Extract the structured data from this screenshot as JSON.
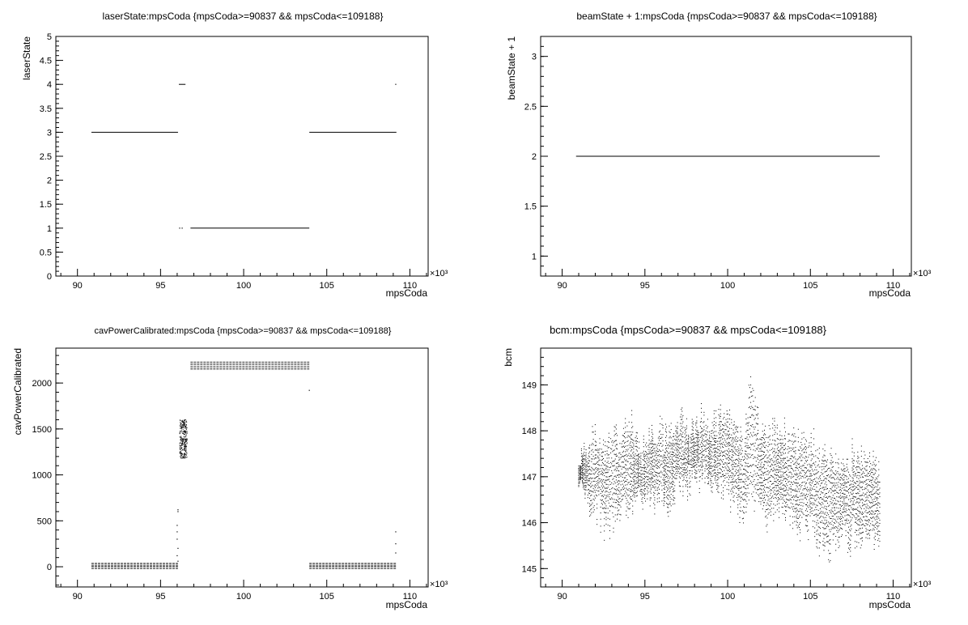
{
  "chart_data": [
    {
      "type": "scatter",
      "title": "laserState:mpsCoda {mpsCoda>=90837 && mpsCoda<=109188}",
      "xlabel": "mpsCoda",
      "ylabel": "laserState",
      "x_multiplier": "×10³",
      "xlim": [
        88.7,
        111.1
      ],
      "ylim": [
        0,
        5
      ],
      "x_ticks": [
        "90",
        "95",
        "100",
        "105",
        "110"
      ],
      "y_ticks": [
        "0",
        "0.5",
        "1",
        "1.5",
        "2",
        "2.5",
        "3",
        "3.5",
        "4",
        "4.5",
        "5"
      ],
      "grid": false,
      "series": [
        {
          "segments": [
            {
              "x": [
                90.84,
                96.05
              ],
              "y": 3
            },
            {
              "x": [
                96.1,
                96.5
              ],
              "y": 4
            },
            {
              "x": [
                96.8,
                103.95
              ],
              "y": 1
            },
            {
              "x": [
                103.95,
                109.19
              ],
              "y": 3
            }
          ],
          "points": [
            [
              96.15,
              1
            ],
            [
              96.3,
              1
            ],
            [
              109.15,
              4
            ]
          ]
        }
      ]
    },
    {
      "type": "scatter",
      "title": "beamState + 1:mpsCoda {mpsCoda>=90837 && mpsCoda<=109188}",
      "xlabel": "mpsCoda",
      "ylabel": "beamState + 1",
      "x_multiplier": "×10³",
      "xlim": [
        88.7,
        111.1
      ],
      "ylim": [
        0.8,
        3.2
      ],
      "x_ticks": [
        "90",
        "95",
        "100",
        "105",
        "110"
      ],
      "y_ticks": [
        "1",
        "1.5",
        "2",
        "2.5",
        "3"
      ],
      "grid": false,
      "series": [
        {
          "segments": [
            {
              "x": [
                90.84,
                109.19
              ],
              "y": 2
            }
          ],
          "points": []
        }
      ]
    },
    {
      "type": "scatter",
      "title": "cavPowerCalibrated:mpsCoda {mpsCoda>=90837 && mpsCoda<=109188}",
      "xlabel": "mpsCoda",
      "ylabel": "cavPowerCalibrated",
      "x_multiplier": "×10³",
      "xlim": [
        88.7,
        111.1
      ],
      "ylim": [
        -220,
        2380
      ],
      "x_ticks": [
        "90",
        "95",
        "100",
        "105",
        "110"
      ],
      "y_ticks": [
        "0",
        "500",
        "1000",
        "1500",
        "2000"
      ],
      "grid": false,
      "series": [
        {
          "bands": [
            {
              "x": [
                90.84,
                96.05
              ],
              "y": [
                -20,
                40
              ]
            },
            {
              "x": [
                96.8,
                103.95
              ],
              "y": [
                2150,
                2230
              ]
            },
            {
              "x": [
                103.95,
                109.19
              ],
              "y": [
                -20,
                40
              ]
            }
          ],
          "clusters": [
            {
              "x": [
                96.15,
                96.6
              ],
              "y": [
                1180,
                1600
              ]
            }
          ],
          "points": [
            [
              96.05,
              620
            ],
            [
              96.05,
              600
            ],
            [
              96.0,
              450
            ],
            [
              96.0,
              380
            ],
            [
              96.0,
              300
            ],
            [
              96.05,
              200
            ],
            [
              96.0,
              120
            ],
            [
              96.05,
              60
            ],
            [
              103.95,
              1920
            ],
            [
              109.15,
              380
            ],
            [
              109.15,
              250
            ],
            [
              109.15,
              150
            ]
          ]
        }
      ]
    },
    {
      "type": "scatter",
      "title": "bcm:mpsCoda {mpsCoda>=90837 && mpsCoda<=109188}",
      "xlabel": "mpsCoda",
      "ylabel": "bcm",
      "x_multiplier": "×10³",
      "xlim": [
        88.7,
        111.1
      ],
      "ylim": [
        144.6,
        149.8
      ],
      "x_ticks": [
        "90",
        "95",
        "100",
        "105",
        "110"
      ],
      "y_ticks": [
        "145",
        "146",
        "147",
        "148",
        "149"
      ],
      "grid": false,
      "series": [
        {
          "envelope": {
            "x": [
              91,
              92,
              93,
              94,
              95,
              96,
              97,
              98,
              99,
              100,
              101,
              101.5,
              102,
              103,
              104,
              105,
              106,
              107,
              108,
              109.19
            ],
            "low": [
              146.6,
              145.9,
              145.6,
              146.0,
              146.3,
              146.1,
              146.4,
              146.6,
              146.6,
              146.2,
              145.9,
              146.3,
              145.9,
              146.0,
              145.7,
              145.6,
              145.2,
              145.3,
              145.3,
              145.3
            ],
            "high": [
              147.6,
              148.2,
              148.1,
              148.6,
              147.9,
              148.3,
              148.5,
              148.4,
              148.6,
              148.7,
              148.2,
              149.5,
              148.3,
              148.2,
              148.2,
              148.0,
              147.8,
              147.7,
              147.8,
              147.6
            ],
            "center": [
              147.1,
              147.1,
              146.9,
              147.3,
              146.9,
              147.1,
              147.4,
              147.5,
              147.5,
              147.4,
              147.2,
              147.9,
              147.2,
              147.2,
              147.0,
              146.9,
              146.6,
              146.5,
              146.5,
              146.5
            ]
          }
        }
      ]
    }
  ]
}
